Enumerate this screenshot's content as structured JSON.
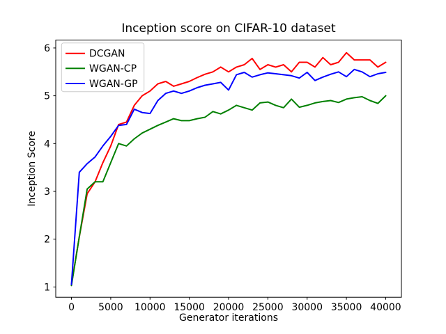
{
  "chart_data": {
    "type": "line",
    "title": "Inception score on CIFAR-10 dataset",
    "xlabel": "Generator iterations",
    "ylabel": "Inception Score",
    "xlim": [
      -2000,
      42000
    ],
    "ylim": [
      0.785,
      6.165
    ],
    "xticks": [
      0,
      5000,
      10000,
      15000,
      20000,
      25000,
      30000,
      35000,
      40000
    ],
    "yticks": [
      1,
      2,
      3,
      4,
      5,
      6
    ],
    "grid": false,
    "legend_position": "upper left",
    "background_color": "#ffffff",
    "spine_color": "#000000",
    "legend_border_color": "#cccccc",
    "x": [
      0,
      1000,
      2000,
      3000,
      4000,
      5000,
      6000,
      7000,
      8000,
      9000,
      10000,
      11000,
      12000,
      13000,
      14000,
      15000,
      16000,
      17000,
      18000,
      19000,
      20000,
      21000,
      22000,
      23000,
      24000,
      25000,
      26000,
      27000,
      28000,
      29000,
      30000,
      31000,
      32000,
      33000,
      34000,
      35000,
      36000,
      37000,
      38000,
      39000,
      40000
    ],
    "series": [
      {
        "name": "DCGAN",
        "color": "#ff0000",
        "values": [
          1.05,
          2.05,
          2.95,
          3.2,
          3.6,
          3.95,
          4.4,
          4.45,
          4.8,
          5.0,
          5.1,
          5.25,
          5.3,
          5.2,
          5.25,
          5.3,
          5.38,
          5.45,
          5.5,
          5.6,
          5.5,
          5.6,
          5.65,
          5.78,
          5.55,
          5.65,
          5.6,
          5.65,
          5.5,
          5.7,
          5.7,
          5.6,
          5.8,
          5.65,
          5.7,
          5.9,
          5.75,
          5.75,
          5.75,
          5.6,
          5.7
        ]
      },
      {
        "name": "WGAN-CP",
        "color": "#008000",
        "values": [
          1.03,
          2.05,
          3.05,
          3.2,
          3.2,
          3.6,
          4.0,
          3.95,
          4.1,
          4.22,
          4.3,
          4.38,
          4.45,
          4.52,
          4.48,
          4.48,
          4.52,
          4.55,
          4.67,
          4.62,
          4.7,
          4.8,
          4.75,
          4.7,
          4.85,
          4.87,
          4.8,
          4.75,
          4.93,
          4.76,
          4.8,
          4.85,
          4.88,
          4.9,
          4.86,
          4.93,
          4.96,
          4.98,
          4.9,
          4.84,
          5.0
        ]
      },
      {
        "name": "WGAN-GP",
        "color": "#0000ff",
        "values": [
          1.05,
          3.4,
          3.58,
          3.72,
          3.95,
          4.15,
          4.38,
          4.4,
          4.72,
          4.65,
          4.63,
          4.9,
          5.05,
          5.1,
          5.05,
          5.1,
          5.17,
          5.22,
          5.25,
          5.28,
          5.12,
          5.44,
          5.49,
          5.39,
          5.44,
          5.48,
          5.46,
          5.44,
          5.42,
          5.37,
          5.49,
          5.32,
          5.39,
          5.45,
          5.5,
          5.4,
          5.55,
          5.5,
          5.4,
          5.46,
          5.49
        ]
      }
    ]
  }
}
